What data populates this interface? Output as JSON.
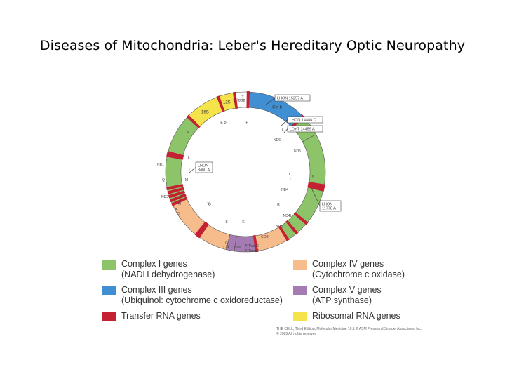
{
  "title": "Diseases of Mitochondria: Leber's Hereditary Optic Neuropathy",
  "colors": {
    "complex1": "#8dc46a",
    "complex3": "#3f8fd2",
    "complex4": "#f7bc8c",
    "complex5": "#a57bb3",
    "rrna": "#f4e34a",
    "trna": "#c42232",
    "dloop": "#ffffff"
  },
  "diagram": {
    "segments": [
      {
        "name": "cytb",
        "label": "Cyt b",
        "type": "complex3"
      },
      {
        "name": "nd6",
        "label": "",
        "type": "complex1"
      },
      {
        "name": "nd5",
        "label": "",
        "type": "complex1"
      },
      {
        "name": "nd4",
        "label": "",
        "type": "complex1"
      },
      {
        "name": "nd4l",
        "label": "",
        "type": "complex1"
      },
      {
        "name": "nd3",
        "label": "",
        "type": "complex1"
      },
      {
        "name": "coiii",
        "label": "",
        "type": "complex4"
      },
      {
        "name": "atpase6",
        "label": "",
        "type": "complex5"
      },
      {
        "name": "atpase8",
        "label": "",
        "type": "complex5"
      },
      {
        "name": "coii",
        "label": "",
        "type": "complex4"
      },
      {
        "name": "coi",
        "label": "",
        "type": "complex4"
      },
      {
        "name": "nd2",
        "label": "",
        "type": "complex1"
      },
      {
        "name": "nd1",
        "label": "",
        "type": "complex1"
      },
      {
        "name": "16s",
        "label": "16S",
        "type": "rrna"
      },
      {
        "name": "12s",
        "label": "12S",
        "type": "rrna"
      },
      {
        "name": "dloop",
        "label": "D loop",
        "type": "dloop"
      }
    ],
    "gene_labels": [
      "ND6",
      "ND5",
      "ND4",
      "ND4L",
      "ND3",
      "COIII",
      "ATPase6",
      "ATPase8",
      "COII",
      "COI",
      "ND2",
      "ND1"
    ],
    "trna_labels": [
      "T",
      "P",
      "E",
      "F",
      "V",
      "L",
      "I",
      "Q",
      "M",
      "W",
      "A",
      "N",
      "C",
      "Y",
      "S",
      "D",
      "K",
      "G",
      "R",
      "H",
      "S",
      "L",
      "O",
      "L"
    ],
    "callouts": [
      {
        "name": "callout-lhon-15257",
        "text": "LHON 15257 A"
      },
      {
        "name": "callout-lhon-14484",
        "text": "LHON 14484 C"
      },
      {
        "name": "callout-ldyt-14459",
        "text": "LDYT 14459 A"
      },
      {
        "name": "callout-lhon-3460",
        "lines": [
          "LHON",
          "3460 A"
        ]
      },
      {
        "name": "callout-lhon-11778",
        "lines": [
          "LHON",
          "11778 A"
        ]
      }
    ]
  },
  "legend": [
    {
      "name": "legend-complex-i",
      "color_key": "complex1",
      "line1": "Complex I genes",
      "line2": "(NADH dehydrogenase)"
    },
    {
      "name": "legend-complex-iii",
      "color_key": "complex3",
      "line1": "Complex III genes",
      "line2": "(Ubiquinol: cytochrome c oxidoreductase)"
    },
    {
      "name": "legend-trna",
      "color_key": "trna",
      "line1": "Transfer RNA genes",
      "line2": ""
    },
    {
      "name": "legend-complex-iv",
      "color_key": "complex4",
      "line1": "Complex IV genes",
      "line2": "(Cytochrome c oxidase)"
    },
    {
      "name": "legend-complex-v",
      "color_key": "complex5",
      "line1": "Complex V genes",
      "line2": "(ATP synthase)"
    },
    {
      "name": "legend-rrna",
      "color_key": "rrna",
      "line1": "Ribosomal RNA genes",
      "line2": ""
    }
  ],
  "credit": {
    "line1": "THE CELL, Third Edition, Molecular Medicine 10.1 © ASM Press and Sinauer Associates, Inc.",
    "line2": "© 2003 All rights reserved"
  }
}
